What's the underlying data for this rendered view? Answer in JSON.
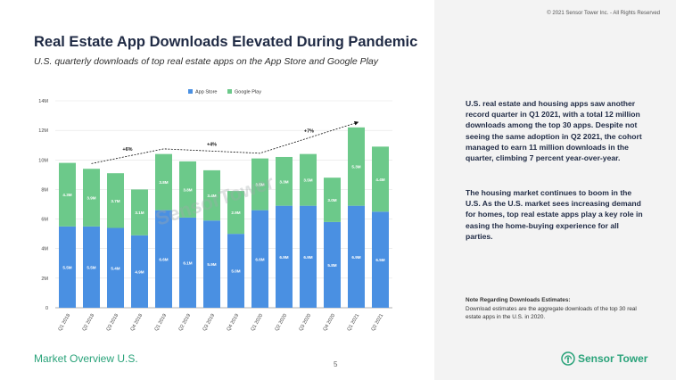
{
  "copyright": "© 2021 Sensor Tower Inc. - All Rights Reserved",
  "chart_data": {
    "type": "bar",
    "stacked": true,
    "title": "Real Estate App Downloads Elevated During Pandemic",
    "subtitle": "U.S. quarterly downloads of top real estate apps on the App Store and Google Play",
    "categories": [
      "Q1 2018",
      "Q2 2018",
      "Q3 2018",
      "Q4 2018",
      "Q1 2019",
      "Q2 2019",
      "Q3 2019",
      "Q4 2019",
      "Q1 2020",
      "Q2 2020",
      "Q3 2020",
      "Q4 2020",
      "Q1 2021",
      "Q2 2021"
    ],
    "series": [
      {
        "name": "App Store",
        "color": "#4a90e2",
        "values": [
          5.5,
          5.5,
          5.4,
          4.9,
          6.6,
          6.1,
          5.9,
          5.0,
          6.6,
          6.9,
          6.9,
          5.8,
          6.9,
          6.5
        ],
        "labels": [
          "5.5M",
          "5.5M",
          "5.4M",
          "4.9M",
          "6.6M",
          "6.1M",
          "5.9M",
          "5.0M",
          "6.6M",
          "6.9M",
          "6.9M",
          "5.8M",
          "6.9M",
          "6.5M"
        ]
      },
      {
        "name": "Google Play",
        "color": "#6cc98a",
        "values": [
          4.3,
          3.9,
          3.7,
          3.1,
          3.8,
          3.8,
          3.4,
          2.9,
          3.5,
          3.3,
          3.5,
          3.0,
          5.3,
          4.4
        ],
        "labels": [
          "4.3M",
          "3.9M",
          "3.7M",
          "3.1M",
          "3.8M",
          "3.8M",
          "3.4M",
          "2.9M",
          "3.5M",
          "3.3M",
          "3.5M",
          "3.0M",
          "5.3M",
          "4.4M"
        ]
      }
    ],
    "ylim": [
      0,
      14
    ],
    "yticks": [
      0,
      2,
      4,
      6,
      8,
      10,
      12,
      14
    ],
    "ytick_labels": [
      "0",
      "2M",
      "4M",
      "6M",
      "8M",
      "10M",
      "12M",
      "14M"
    ],
    "legend": "top-center",
    "annotations": [
      {
        "label": "+6%",
        "from": "Q2 2018",
        "to": "Q1 2019"
      },
      {
        "label": "+4%",
        "from": "Q1 2019",
        "to": "Q1 2020"
      },
      {
        "label": "+7%",
        "from": "Q1 2020",
        "to": "Q1 2021"
      }
    ]
  },
  "watermark": "SensorTower",
  "right_panel": {
    "paragraph1": "U.S. real estate and housing apps saw another record quarter in Q1 2021, with a total 12 million downloads among the top 30 apps. Despite not seeing the same adoption in Q2 2021, the cohort managed to earn 11 million downloads in the quarter, climbing 7 percent year-over-year.",
    "paragraph2": "The housing market continues to boom in the U.S. As the U.S. market sees increasing demand for homes, top real estate apps play a key role in easing the home-buying experience for all parties.",
    "note_title": "Note Regarding Downloads Estimates:",
    "note_text": "Download estimates are the aggregate downloads of the top 30 real estate apps in the U.S. in 2020."
  },
  "footer": {
    "left": "Market Overview U.S.",
    "page": "5",
    "logo_text": "Sensor Tower",
    "brand_color": "#2aa37a"
  }
}
